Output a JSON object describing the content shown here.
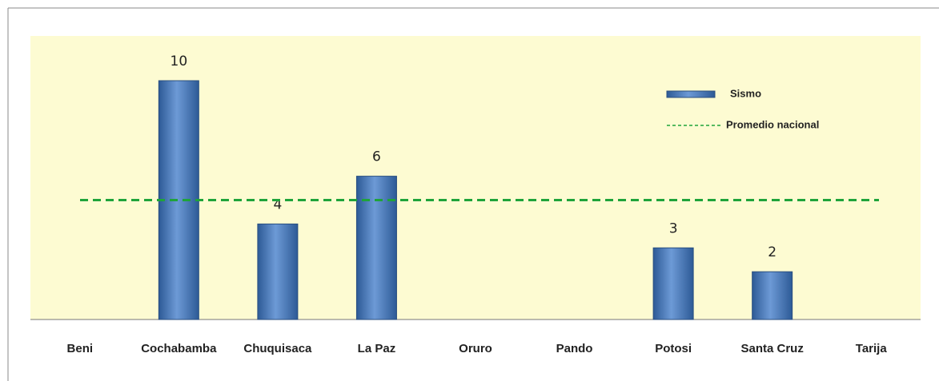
{
  "chart_data": {
    "type": "bar",
    "categories": [
      "Beni",
      "Cochabamba",
      "Chuquisaca",
      "La Paz",
      "Oruro",
      "Pando",
      "Potosi",
      "Santa Cruz",
      "Tarija"
    ],
    "series": [
      {
        "name": "Sismo",
        "color": "#4f81bd",
        "values": [
          null,
          10,
          4,
          6,
          null,
          null,
          3,
          2,
          null
        ]
      }
    ],
    "reference_line": {
      "name": "Promedio nacional",
      "value": 5,
      "color": "#1fa33a"
    },
    "legend": "top-right"
  }
}
